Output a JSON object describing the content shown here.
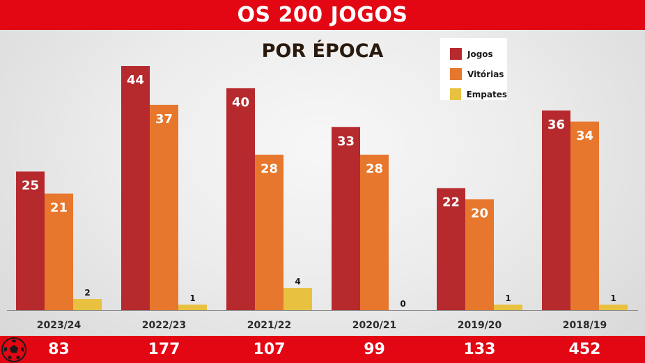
{
  "header": {
    "title": "OS 200 JOGOS"
  },
  "colors": {
    "band": "#e30613",
    "jogos": "#b62a2e",
    "vitorias": "#e7772c",
    "empates": "#e8c140"
  },
  "icons": {
    "footer_ball": "football-icon"
  },
  "chart_data": {
    "type": "bar",
    "title": "POR ÉPOCA",
    "categories": [
      "2023/24",
      "2022/23",
      "2021/22",
      "2020/21",
      "2019/20",
      "2018/19"
    ],
    "series": [
      {
        "name": "Jogos",
        "values": [
          25,
          44,
          40,
          33,
          22,
          36
        ]
      },
      {
        "name": "Vitórias",
        "values": [
          21,
          37,
          28,
          28,
          20,
          34
        ]
      },
      {
        "name": "Empates",
        "values": [
          2,
          1,
          4,
          0,
          1,
          1
        ]
      }
    ],
    "legend_position": "top-right",
    "grid": false,
    "ylim": [
      0,
      44
    ],
    "totals": [
      "83",
      "177",
      "107",
      "99",
      "133",
      "452"
    ]
  }
}
